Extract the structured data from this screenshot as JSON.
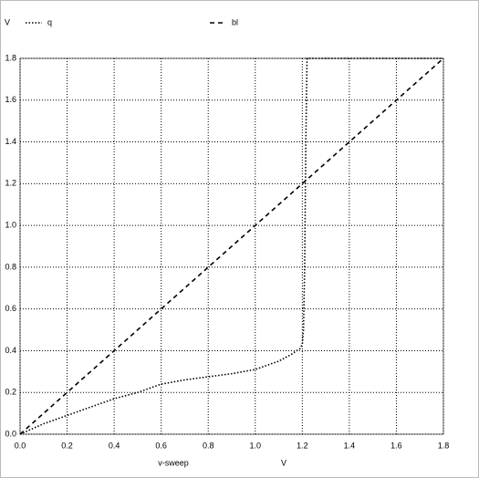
{
  "chart_data": {
    "type": "line",
    "y_label": "V",
    "x_label": "v-sweep",
    "x_unit": "V",
    "series": [
      {
        "name": "q",
        "color": "#000000",
        "style": "dotted",
        "x": [
          0,
          0.1,
          0.2,
          0.3,
          0.4,
          0.5,
          0.6,
          0.7,
          0.8,
          0.9,
          1.0,
          1.1,
          1.15,
          1.19,
          1.2,
          1.205,
          1.21,
          1.215,
          1.22,
          1.8
        ],
        "values": [
          0,
          0.05,
          0.09,
          0.13,
          0.17,
          0.2,
          0.24,
          0.26,
          0.275,
          0.29,
          0.31,
          0.35,
          0.38,
          0.41,
          0.43,
          0.5,
          0.8,
          1.4,
          1.8,
          1.8
        ]
      },
      {
        "name": "bl",
        "color": "#000000",
        "style": "dashed",
        "x": [
          0,
          1.8
        ],
        "values": [
          0,
          1.8
        ]
      }
    ],
    "xlim": [
      0,
      1.8
    ],
    "xticks": [
      {
        "value": 0,
        "label": "0.0"
      },
      0.2,
      0.4,
      0.6,
      0.8,
      {
        "value": 1,
        "label": "1.0"
      },
      1.2,
      1.4,
      1.6,
      1.8
    ],
    "ylim": [
      0,
      1.8
    ],
    "yticks": [
      {
        "value": 0,
        "label": "0.0"
      },
      0.2,
      0.4,
      0.6,
      0.8,
      {
        "value": 1,
        "label": "1.0"
      },
      1.2,
      1.4,
      1.6,
      1.8
    ],
    "grid": true
  }
}
